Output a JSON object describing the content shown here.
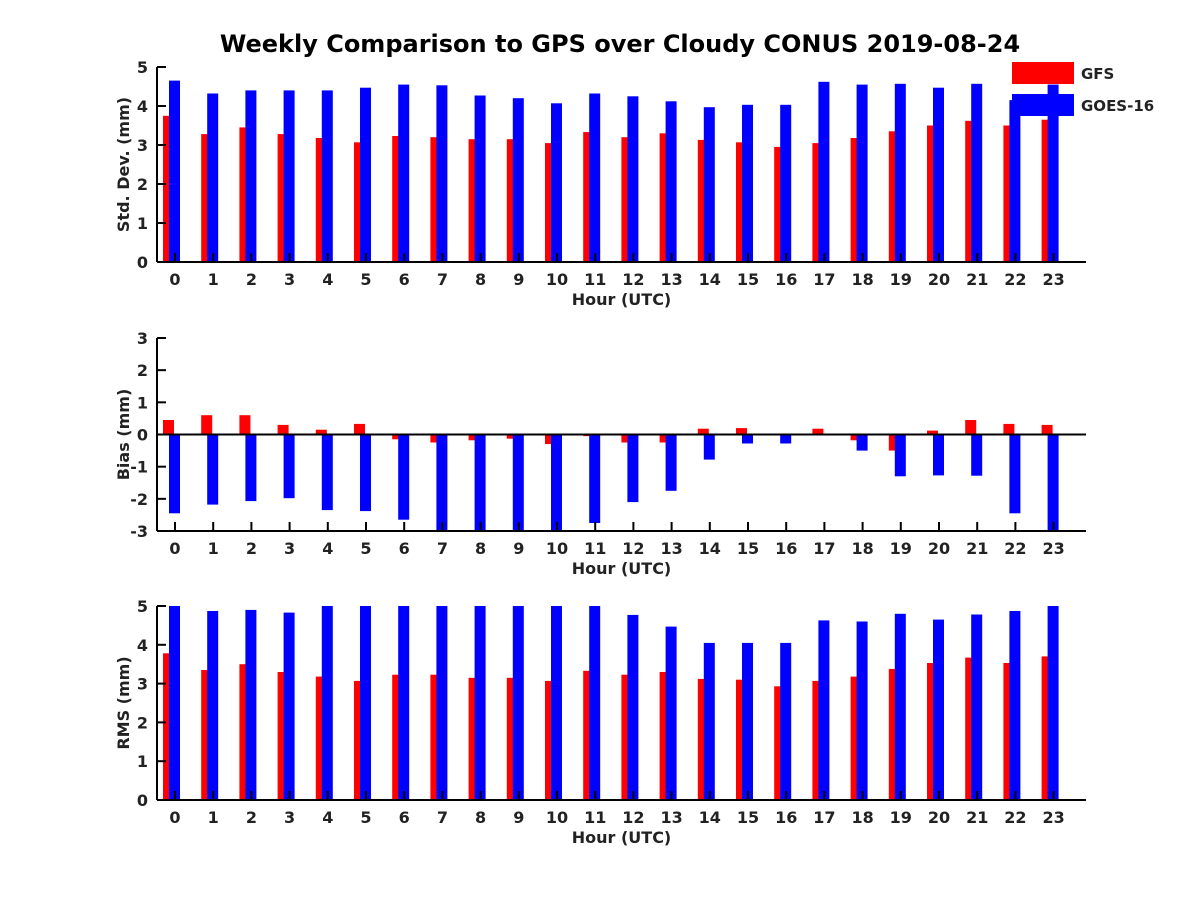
{
  "title": "Weekly Comparison to GPS over Cloudy CONUS 2019-08-24",
  "legend": [
    {
      "label": "GFS",
      "color": "#ff0000"
    },
    {
      "label": "GOES-16",
      "color": "#0000ff"
    }
  ],
  "chart_data": [
    {
      "type": "bar",
      "categories": [
        "0",
        "1",
        "2",
        "3",
        "4",
        "5",
        "6",
        "7",
        "8",
        "9",
        "10",
        "11",
        "12",
        "13",
        "14",
        "15",
        "16",
        "17",
        "18",
        "19",
        "20",
        "21",
        "22",
        "23"
      ],
      "xlabel": "Hour (UTC)",
      "ylabel": "Std. Dev. (mm)",
      "ylim": [
        0,
        5
      ],
      "yticks": [
        0,
        1,
        2,
        3,
        4,
        5
      ],
      "legend_position": "top-right",
      "series": [
        {
          "name": "GFS",
          "color": "#ff0000",
          "values": [
            3.75,
            3.28,
            3.45,
            3.28,
            3.18,
            3.07,
            3.23,
            3.2,
            3.15,
            3.15,
            3.05,
            3.33,
            3.2,
            3.3,
            3.13,
            3.07,
            2.95,
            3.05,
            3.18,
            3.35,
            3.5,
            3.62,
            3.5,
            3.65
          ]
        },
        {
          "name": "GOES-16",
          "color": "#0000ff",
          "values": [
            4.65,
            4.32,
            4.4,
            4.4,
            4.4,
            4.47,
            4.55,
            4.53,
            4.27,
            4.2,
            4.07,
            4.32,
            4.25,
            4.12,
            3.97,
            4.03,
            4.03,
            4.62,
            4.55,
            4.57,
            4.47,
            4.57,
            4.15,
            4.55
          ]
        }
      ]
    },
    {
      "type": "bar",
      "categories": [
        "0",
        "1",
        "2",
        "3",
        "4",
        "5",
        "6",
        "7",
        "8",
        "9",
        "10",
        "11",
        "12",
        "13",
        "14",
        "15",
        "16",
        "17",
        "18",
        "19",
        "20",
        "21",
        "22",
        "23"
      ],
      "xlabel": "Hour (UTC)",
      "ylabel": "Bias (mm)",
      "ylim": [
        -3,
        3
      ],
      "yticks": [
        -3,
        -2,
        -1,
        0,
        1,
        2,
        3
      ],
      "zero_line": true,
      "series": [
        {
          "name": "GFS",
          "color": "#ff0000",
          "values": [
            0.45,
            0.6,
            0.6,
            0.3,
            0.15,
            0.33,
            -0.15,
            -0.25,
            -0.18,
            -0.13,
            -0.3,
            -0.05,
            -0.25,
            -0.25,
            0.18,
            0.2,
            0.03,
            0.18,
            -0.18,
            -0.5,
            0.12,
            0.45,
            0.33,
            0.3
          ]
        },
        {
          "name": "GOES-16",
          "color": "#0000ff",
          "values": [
            -2.45,
            -2.18,
            -2.07,
            -1.98,
            -2.35,
            -2.38,
            -2.65,
            -3.0,
            -3.0,
            -3.0,
            -3.0,
            -2.75,
            -2.1,
            -1.75,
            -0.78,
            -0.28,
            -0.28,
            0.0,
            -0.5,
            -1.3,
            -1.27,
            -1.28,
            -2.45,
            -3.0
          ]
        }
      ]
    },
    {
      "type": "bar",
      "categories": [
        "0",
        "1",
        "2",
        "3",
        "4",
        "5",
        "6",
        "7",
        "8",
        "9",
        "10",
        "11",
        "12",
        "13",
        "14",
        "15",
        "16",
        "17",
        "18",
        "19",
        "20",
        "21",
        "22",
        "23"
      ],
      "xlabel": "Hour (UTC)",
      "ylabel": "RMS (mm)",
      "ylim": [
        0,
        5
      ],
      "yticks": [
        0,
        1,
        2,
        3,
        4,
        5
      ],
      "series": [
        {
          "name": "GFS",
          "color": "#ff0000",
          "values": [
            3.78,
            3.35,
            3.5,
            3.3,
            3.18,
            3.07,
            3.23,
            3.23,
            3.15,
            3.15,
            3.07,
            3.33,
            3.23,
            3.3,
            3.12,
            3.1,
            2.93,
            3.07,
            3.18,
            3.38,
            3.53,
            3.67,
            3.53,
            3.7
          ]
        },
        {
          "name": "GOES-16",
          "color": "#0000ff",
          "values": [
            5.0,
            4.87,
            4.9,
            4.83,
            5.0,
            5.0,
            5.0,
            5.0,
            5.0,
            5.0,
            5.0,
            5.0,
            4.77,
            4.47,
            4.05,
            4.05,
            4.05,
            4.63,
            4.6,
            4.8,
            4.65,
            4.78,
            4.87,
            5.0
          ]
        }
      ]
    }
  ]
}
